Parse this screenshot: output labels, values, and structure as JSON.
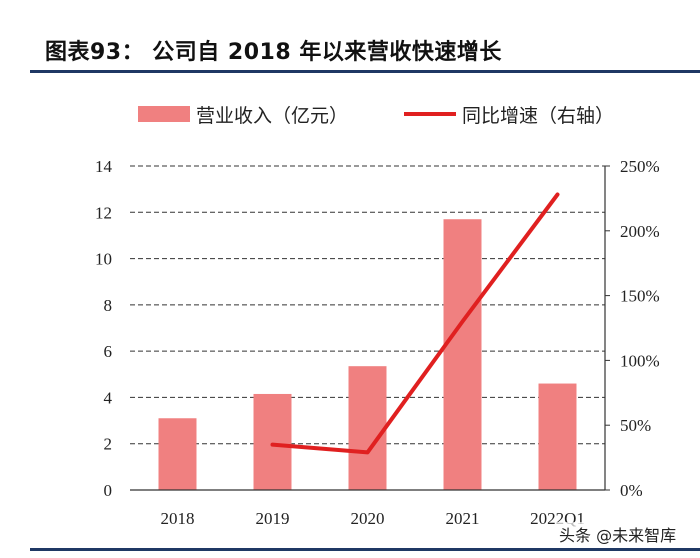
{
  "figure": {
    "title": "图表93：  公司自 2018 年以来营收快速增长"
  },
  "watermark": "头条 @未来智库",
  "chart_data": {
    "type": "bar",
    "categories": [
      "2018",
      "2019",
      "2020",
      "2021",
      "2022Q1"
    ],
    "series": [
      {
        "name": "营业收入（亿元）",
        "kind": "bar",
        "axis": "left",
        "color": "#f08080",
        "values": [
          3.1,
          4.15,
          5.35,
          11.7,
          4.6
        ]
      },
      {
        "name": "同比增速（右轴）",
        "kind": "line",
        "axis": "right",
        "color": "#e02020",
        "values": [
          null,
          0.35,
          0.29,
          1.3,
          2.28
        ]
      }
    ],
    "y_left": {
      "min": 0,
      "max": 14,
      "ticks": [
        "0",
        "2",
        "4",
        "6",
        "8",
        "10",
        "12",
        "14"
      ]
    },
    "y_right": {
      "min": 0,
      "max": 2.5,
      "ticks": [
        "0%",
        "50%",
        "100%",
        "150%",
        "200%",
        "250%"
      ]
    },
    "grid": "horizontal dashed",
    "legend_position": "top"
  }
}
